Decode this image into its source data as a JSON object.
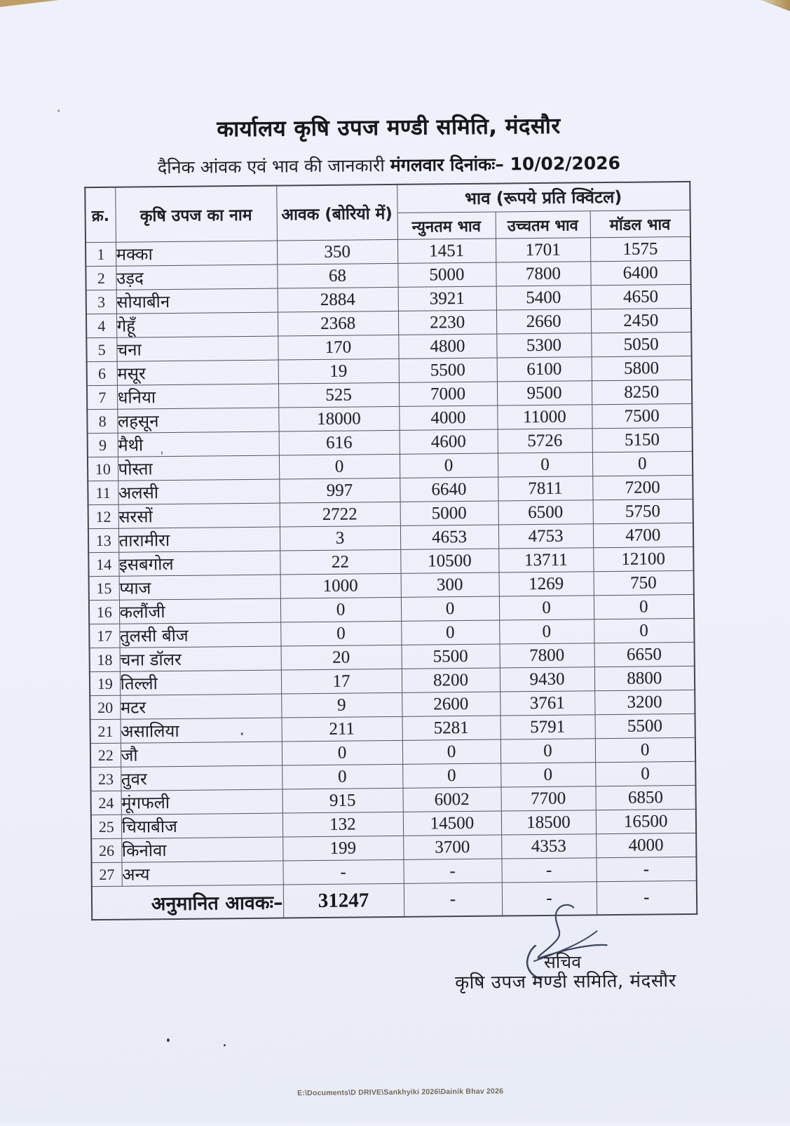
{
  "page": {
    "title": "कार्यालय कृषि उपज मण्डी समिति, मंदसौर",
    "subtitle_text": "दैनिक आंवक एवं भाव की जानकारी",
    "subtitle_date": "मंगलवार दिनांकः– 10/02/2026"
  },
  "table": {
    "headers": {
      "serial": "क्र.",
      "name": "कृषि उपज का नाम",
      "arrival": "आवक (बोरियो में)",
      "price_group": "भाव (रूपये प्रति क्विंटल)",
      "min": "न्युनतम भाव",
      "max": "उच्चतम भाव",
      "modal": "मॉडल भाव"
    },
    "rows": [
      {
        "sn": "1",
        "name": "मक्का",
        "arrival": "350",
        "min": "1451",
        "max": "1701",
        "modal": "1575"
      },
      {
        "sn": "2",
        "name": "उड़द",
        "arrival": "68",
        "min": "5000",
        "max": "7800",
        "modal": "6400"
      },
      {
        "sn": "3",
        "name": "सोयाबीन",
        "arrival": "2884",
        "min": "3921",
        "max": "5400",
        "modal": "4650"
      },
      {
        "sn": "4",
        "name": "गेहूँ",
        "arrival": "2368",
        "min": "2230",
        "max": "2660",
        "modal": "2450"
      },
      {
        "sn": "5",
        "name": "चना",
        "arrival": "170",
        "min": "4800",
        "max": "5300",
        "modal": "5050"
      },
      {
        "sn": "6",
        "name": "मसूर",
        "arrival": "19",
        "min": "5500",
        "max": "6100",
        "modal": "5800"
      },
      {
        "sn": "7",
        "name": "धनिया",
        "arrival": "525",
        "min": "7000",
        "max": "9500",
        "modal": "8250"
      },
      {
        "sn": "8",
        "name": "लहसून",
        "arrival": "18000",
        "min": "4000",
        "max": "11000",
        "modal": "7500"
      },
      {
        "sn": "9",
        "name": "मैथी",
        "arrival": "616",
        "min": "4600",
        "max": "5726",
        "modal": "5150"
      },
      {
        "sn": "10",
        "name": "पोस्ता",
        "arrival": "0",
        "min": "0",
        "max": "0",
        "modal": "0"
      },
      {
        "sn": "11",
        "name": "अलसी",
        "arrival": "997",
        "min": "6640",
        "max": "7811",
        "modal": "7200"
      },
      {
        "sn": "12",
        "name": "सरसों",
        "arrival": "2722",
        "min": "5000",
        "max": "6500",
        "modal": "5750"
      },
      {
        "sn": "13",
        "name": "तारामीरा",
        "arrival": "3",
        "min": "4653",
        "max": "4753",
        "modal": "4700"
      },
      {
        "sn": "14",
        "name": "इसबगोल",
        "arrival": "22",
        "min": "10500",
        "max": "13711",
        "modal": "12100"
      },
      {
        "sn": "15",
        "name": "प्याज",
        "arrival": "1000",
        "min": "300",
        "max": "1269",
        "modal": "750"
      },
      {
        "sn": "16",
        "name": "कलौंजी",
        "arrival": "0",
        "min": "0",
        "max": "0",
        "modal": "0"
      },
      {
        "sn": "17",
        "name": "तुलसी बीज",
        "arrival": "0",
        "min": "0",
        "max": "0",
        "modal": "0"
      },
      {
        "sn": "18",
        "name": "चना डॉलर",
        "arrival": "20",
        "min": "5500",
        "max": "7800",
        "modal": "6650"
      },
      {
        "sn": "19",
        "name": "तिल्ली",
        "arrival": "17",
        "min": "8200",
        "max": "9430",
        "modal": "8800"
      },
      {
        "sn": "20",
        "name": "मटर",
        "arrival": "9",
        "min": "2600",
        "max": "3761",
        "modal": "3200"
      },
      {
        "sn": "21",
        "name": "असालिया",
        "arrival": "211",
        "min": "5281",
        "max": "5791",
        "modal": "5500"
      },
      {
        "sn": "22",
        "name": "जौ",
        "arrival": "0",
        "min": "0",
        "max": "0",
        "modal": "0"
      },
      {
        "sn": "23",
        "name": "तुवर",
        "arrival": "0",
        "min": "0",
        "max": "0",
        "modal": "0"
      },
      {
        "sn": "24",
        "name": "मूंगफली",
        "arrival": "915",
        "min": "6002",
        "max": "7700",
        "modal": "6850"
      },
      {
        "sn": "25",
        "name": "चियाबीज",
        "arrival": "132",
        "min": "14500",
        "max": "18500",
        "modal": "16500"
      },
      {
        "sn": "26",
        "name": "किनोवा",
        "arrival": "199",
        "min": "3700",
        "max": "4353",
        "modal": "4000"
      },
      {
        "sn": "27",
        "name": "अन्य",
        "arrival": "-",
        "min": "-",
        "max": "-",
        "modal": "-"
      }
    ],
    "total": {
      "label": "अनुमानित आवकः–",
      "arrival": "31247",
      "min": "-",
      "max": "-",
      "modal": "-"
    }
  },
  "signature": {
    "title": "सचिव",
    "org": "कृषि उपज मण्डी समिति, मंदसौर",
    "ink_color": "#3e4560"
  },
  "footer": {
    "path": "E:\\Documents\\D DRIVE\\Sankhyiki 2026\\Dainik Bhav 2026"
  }
}
